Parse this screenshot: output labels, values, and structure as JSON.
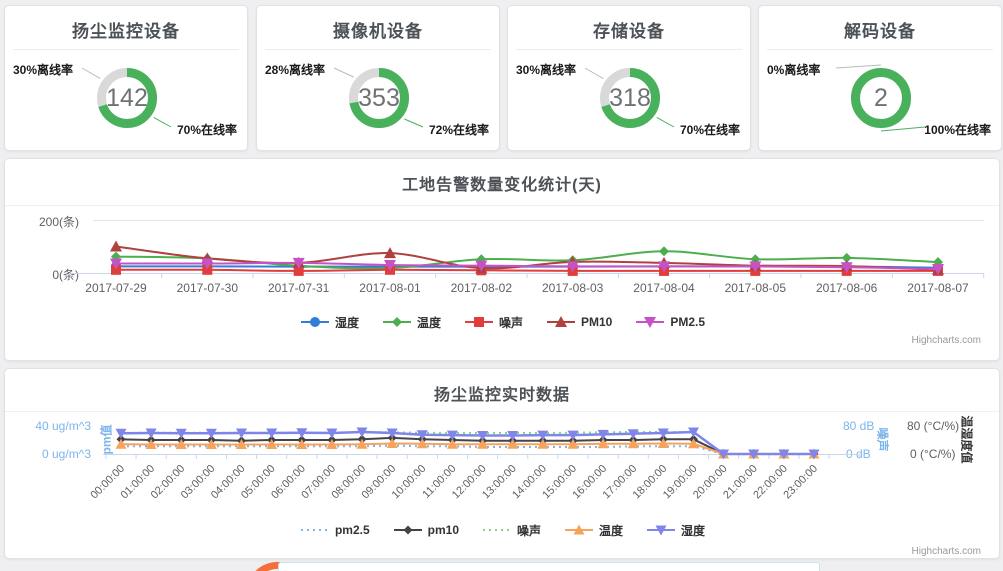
{
  "cards": [
    {
      "title": "扬尘监控设备",
      "count": "142",
      "offline_label": "30%离线率",
      "online_label": "70%在线率",
      "online_pct": 70
    },
    {
      "title": "摄像机设备",
      "count": "353",
      "offline_label": "28%离线率",
      "online_label": "72%在线率",
      "online_pct": 72
    },
    {
      "title": "存储设备",
      "count": "318",
      "offline_label": "30%离线率",
      "online_label": "70%在线率",
      "online_pct": 70
    },
    {
      "title": "解码设备",
      "count": "2",
      "offline_label": "0%离线率",
      "online_label": "100%在线率",
      "online_pct": 100
    }
  ],
  "donut": {
    "online_color": "#49b15c",
    "offline_color": "#d9d9d9",
    "connector_gray": "#bbbbbb"
  },
  "chart_data": [
    {
      "type": "line",
      "title": "工地告警数量变化统计(天)",
      "y_axis": {
        "top_label": "200(条)",
        "bottom_label": "0(条)",
        "max": 200
      },
      "categories": [
        "2017-07-29",
        "2017-07-30",
        "2017-07-31",
        "2017-08-01",
        "2017-08-02",
        "2017-08-03",
        "2017-08-04",
        "2017-08-05",
        "2017-08-06",
        "2017-08-07"
      ],
      "series": [
        {
          "name": "湿度",
          "color": "#2f7ed8",
          "marker": "circle",
          "values": [
            25,
            25,
            24,
            24,
            24,
            24,
            25,
            25,
            24,
            20
          ]
        },
        {
          "name": "温度",
          "color": "#4cae4c",
          "marker": "diamond",
          "values": [
            62,
            55,
            27,
            18,
            52,
            48,
            82,
            52,
            57,
            41
          ]
        },
        {
          "name": "噪声",
          "color": "#e23d3d",
          "marker": "square",
          "values": [
            12,
            12,
            8,
            12,
            10,
            8,
            8,
            8,
            8,
            8
          ]
        },
        {
          "name": "PM10",
          "color": "#b0413e",
          "marker": "triangle",
          "values": [
            100,
            55,
            38,
            75,
            18,
            42,
            38,
            28,
            26,
            12
          ]
        },
        {
          "name": "PM2.5",
          "color": "#c653c6",
          "marker": "triangle-down",
          "values": [
            36,
            36,
            38,
            30,
            28,
            25,
            25,
            25,
            22,
            15
          ]
        }
      ],
      "smooth": true,
      "legend_position": "bottom",
      "grid": "top-line-only",
      "credit": "Highcharts.com"
    },
    {
      "type": "line",
      "title": "扬尘监控实时数据",
      "axes": {
        "left": {
          "top_label": "40 ug/m^3",
          "bottom_label": "0 ug/m^3",
          "title": "pm值",
          "color": "#7cb5ec",
          "max": 40
        },
        "right_db": {
          "top_label": "80 dB",
          "bottom_label": "0 dB",
          "title": "噪声",
          "color": "#7cb5ec",
          "max": 80
        },
        "right_pct": {
          "top_label": "80 (°C/%)",
          "bottom_label": "0 (°C/%)",
          "title": "温湿度值",
          "color": "#333333",
          "max": 80
        }
      },
      "categories": [
        "00:00:00",
        "01:00:00",
        "02:00:00",
        "03:00:00",
        "04:00:00",
        "05:00:00",
        "06:00:00",
        "07:00:00",
        "08:00:00",
        "09:00:00",
        "10:00:00",
        "11:00:00",
        "12:00:00",
        "13:00:00",
        "14:00:00",
        "15:00:00",
        "16:00:00",
        "17:00:00",
        "18:00:00",
        "19:00:00",
        "20:00:00",
        "21:00:00",
        "22:00:00",
        "23:00:00"
      ],
      "series": [
        {
          "name": "pm2.5",
          "color": "#7cb5ec",
          "marker": "none",
          "dash": "dot",
          "axis_max": 40,
          "values": [
            11,
            11,
            11,
            11,
            11,
            11,
            11,
            11,
            11,
            12,
            11,
            11,
            10,
            10,
            10,
            10,
            10,
            11,
            11,
            11,
            0,
            0,
            0,
            0
          ]
        },
        {
          "name": "pm10",
          "color": "#434348",
          "marker": "diamond",
          "axis_max": 40,
          "values": [
            21,
            20,
            20,
            20,
            19,
            20,
            20,
            20,
            21,
            23,
            21,
            20,
            19,
            19,
            19,
            19,
            20,
            20,
            21,
            21,
            0,
            0,
            0,
            0
          ]
        },
        {
          "name": "噪声",
          "color": "#82d982",
          "marker": "none",
          "dash": "dot",
          "axis_max": 80,
          "values": [
            60,
            61,
            61,
            61,
            61,
            61,
            61,
            61,
            62,
            62,
            61,
            60,
            60,
            60,
            60,
            61,
            62,
            63,
            63,
            62,
            0,
            0,
            0,
            0
          ]
        },
        {
          "name": "温度",
          "color": "#f7a35c",
          "marker": "triangle",
          "axis_max": 80,
          "values": [
            28,
            27,
            27,
            27,
            27,
            27,
            27,
            27,
            28,
            30,
            29,
            28,
            28,
            28,
            28,
            28,
            29,
            29,
            30,
            29,
            0,
            0,
            0,
            0
          ]
        },
        {
          "name": "湿度",
          "color": "#8085e9",
          "marker": "triangle-down",
          "axis_max": 80,
          "values": [
            59,
            60,
            59,
            59,
            60,
            60,
            61,
            60,
            63,
            60,
            55,
            54,
            53,
            53,
            54,
            54,
            56,
            58,
            60,
            63,
            0,
            0,
            0,
            0
          ]
        }
      ],
      "smooth": false,
      "legend_position": "bottom",
      "grid": "none",
      "credit": "Highcharts.com"
    }
  ]
}
